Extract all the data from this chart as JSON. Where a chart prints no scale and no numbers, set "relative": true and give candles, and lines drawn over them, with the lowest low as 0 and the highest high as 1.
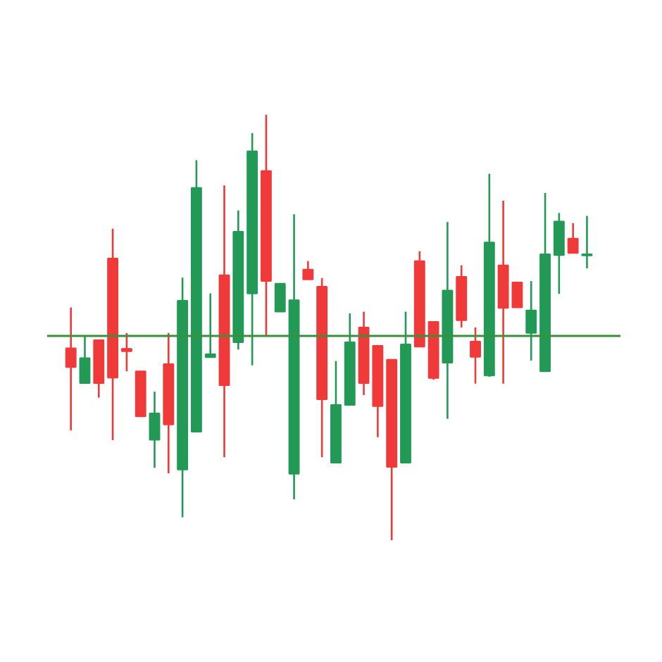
{
  "chart_data": {
    "type": "candlestick",
    "relative": true,
    "grid": false,
    "categories": [
      null,
      null,
      null,
      null,
      null,
      null,
      null,
      null,
      null,
      null,
      null,
      null,
      null,
      null,
      null,
      null,
      null,
      null,
      null,
      null,
      null,
      null,
      null,
      null,
      null,
      null,
      null,
      null,
      null,
      null,
      null,
      null,
      null,
      null,
      null,
      null,
      null,
      null
    ],
    "ohlc": [
      [
        0.451,
        0.547,
        0.258,
        0.407
      ],
      [
        0.369,
        0.48,
        0.369,
        0.428
      ],
      [
        0.47,
        0.47,
        0.335,
        0.369
      ],
      [
        0.662,
        0.732,
        0.235,
        0.382
      ],
      [
        0.45,
        0.487,
        0.397,
        0.444
      ],
      [
        0.397,
        0.397,
        0.291,
        0.291
      ],
      [
        0.236,
        0.349,
        0.17,
        0.298
      ],
      [
        0.414,
        0.487,
        0.157,
        0.272
      ],
      [
        0.166,
        0.617,
        0.054,
        0.563
      ],
      [
        0.255,
        0.893,
        0.255,
        0.828
      ],
      [
        0.43,
        0.58,
        0.429,
        0.437
      ],
      [
        0.623,
        0.834,
        0.195,
        0.364
      ],
      [
        0.465,
        0.775,
        0.448,
        0.725
      ],
      [
        0.58,
        0.957,
        0.411,
        0.914
      ],
      [
        0.868,
        1,
        0.481,
        0.609
      ],
      [
        0.537,
        0.603,
        0.537,
        0.603
      ],
      [
        0.156,
        0.766,
        0.096,
        0.564
      ],
      [
        0.636,
        0.656,
        0.613,
        0.613
      ],
      [
        0.596,
        0.616,
        0.195,
        0.331
      ],
      [
        0.182,
        0.421,
        0.182,
        0.318
      ],
      [
        0.318,
        0.533,
        0.318,
        0.465
      ],
      [
        0.5,
        0.537,
        0.341,
        0.369
      ],
      [
        0.457,
        0.457,
        0.242,
        0.315
      ],
      [
        0.424,
        0.424,
        0,
        0.172
      ],
      [
        0.182,
        0.537,
        0.182,
        0.46
      ],
      [
        0.656,
        0.679,
        0.455,
        0.455
      ],
      [
        0.513,
        0.513,
        0.377,
        0.381
      ],
      [
        0.417,
        0.748,
        0.285,
        0.587
      ],
      [
        0.619,
        0.646,
        0.5,
        0.517
      ],
      [
        0.467,
        0.5,
        0.368,
        0.431
      ],
      [
        0.387,
        0.861,
        0.384,
        0.7
      ],
      [
        0.646,
        0.798,
        0.368,
        0.546
      ],
      [
        0.606,
        0.606,
        0.547,
        0.547
      ],
      [
        0.487,
        0.609,
        0.422,
        0.54
      ],
      [
        0.397,
        0.816,
        0.397,
        0.672
      ],
      [
        0.67,
        0.769,
        0.579,
        0.749
      ],
      [
        0.709,
        0.745,
        0.675,
        0.675
      ],
      [
        0.669,
        0.762,
        0.639,
        0.672
      ]
    ],
    "colors": [
      "#f03a3a",
      "#229a55",
      "#f03a3a",
      "#f03a3a",
      "#f03a3a",
      "#f03a3a",
      "#229a55",
      "#f03a3a",
      "#229a55",
      "#229a55",
      "#229a55",
      "#f03a3a",
      "#229a55",
      "#229a55",
      "#f03a3a",
      "#229a55",
      "#229a55",
      "#f03a3a",
      "#f03a3a",
      "#229a55",
      "#229a55",
      "#f03a3a",
      "#f03a3a",
      "#f03a3a",
      "#229a55",
      "#f03a3a",
      "#f03a3a",
      "#229a55",
      "#f03a3a",
      "#f03a3a",
      "#229a55",
      "#f03a3a",
      "#f03a3a",
      "#229a55",
      "#229a55",
      "#229a55",
      "#f03a3a",
      "#229a55"
    ],
    "ref_lines": [
      {
        "axis": "y",
        "value": 0.48,
        "label": null,
        "color": "#3a8f3a"
      }
    ]
  }
}
